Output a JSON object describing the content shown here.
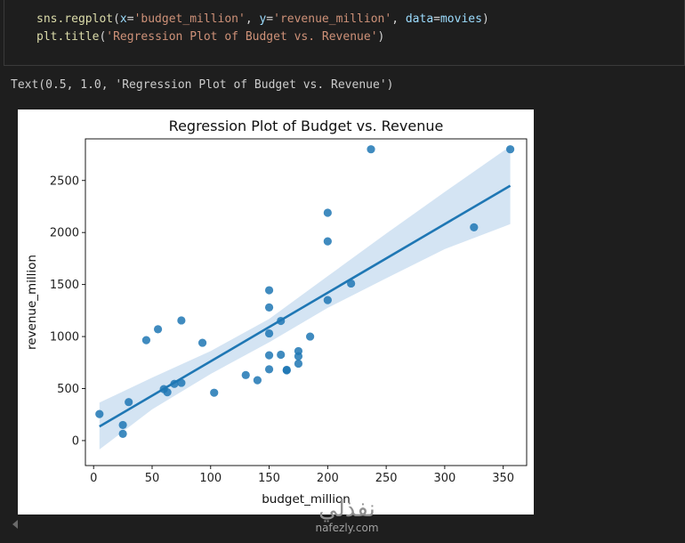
{
  "code": {
    "line1": {
      "fn": "sns.regplot",
      "open": "(",
      "k1": "x",
      "eq1": "=",
      "v1": "'budget_million'",
      "c1": ", ",
      "k2": "y",
      "eq2": "=",
      "v2": "'revenue_million'",
      "c2": ", ",
      "k3": "data",
      "eq3": "=",
      "v3": "movies",
      "close": ")"
    },
    "line2": {
      "fn": "plt.title",
      "open": "(",
      "v1": "'Regression Plot of Budget vs. Revenue'",
      "close": ")"
    }
  },
  "output": "Text(0.5, 1.0, 'Regression Plot of Budget vs. Revenue')",
  "chart_data": {
    "type": "scatter",
    "title": "Regression Plot of Budget vs. Revenue",
    "xlabel": "budget_million",
    "ylabel": "revenue_million",
    "xlim": [
      -7,
      370
    ],
    "ylim": [
      -240,
      2900
    ],
    "xticks": [
      0,
      50,
      100,
      150,
      200,
      250,
      300,
      350
    ],
    "yticks": [
      0,
      500,
      1000,
      1500,
      2000,
      2500
    ],
    "grid": false,
    "points": [
      [
        5,
        255
      ],
      [
        25,
        150
      ],
      [
        25,
        65
      ],
      [
        30,
        370
      ],
      [
        45,
        965
      ],
      [
        55,
        1070
      ],
      [
        60,
        495
      ],
      [
        63,
        465
      ],
      [
        69,
        545
      ],
      [
        75,
        1155
      ],
      [
        75,
        555
      ],
      [
        93,
        940
      ],
      [
        103,
        460
      ],
      [
        130,
        630
      ],
      [
        140,
        580
      ],
      [
        150,
        1445
      ],
      [
        150,
        1280
      ],
      [
        150,
        1030
      ],
      [
        150,
        820
      ],
      [
        150,
        685
      ],
      [
        160,
        1150
      ],
      [
        160,
        825
      ],
      [
        165,
        680
      ],
      [
        165,
        675
      ],
      [
        175,
        860
      ],
      [
        175,
        810
      ],
      [
        175,
        740
      ],
      [
        185,
        1000
      ],
      [
        200,
        2190
      ],
      [
        200,
        1915
      ],
      [
        200,
        1350
      ],
      [
        220,
        1510
      ],
      [
        237,
        2800
      ],
      [
        325,
        2050
      ],
      [
        356,
        2800
      ]
    ],
    "regression": {
      "x": [
        5,
        356
      ],
      "y": [
        135,
        2450
      ]
    },
    "confidence_band": {
      "x": [
        5,
        50,
        100,
        150,
        200,
        250,
        300,
        356
      ],
      "upper": [
        365,
        605,
        860,
        1170,
        1580,
        1990,
        2390,
        2830
      ],
      "lower": [
        -85,
        300,
        640,
        945,
        1275,
        1560,
        1840,
        2080
      ]
    },
    "colors": {
      "points": "#1f77b4",
      "line": "#1f77b4",
      "band": "#c6dbef"
    }
  },
  "watermark": {
    "logo": "نفذلي",
    "url": "nafezly.com"
  }
}
